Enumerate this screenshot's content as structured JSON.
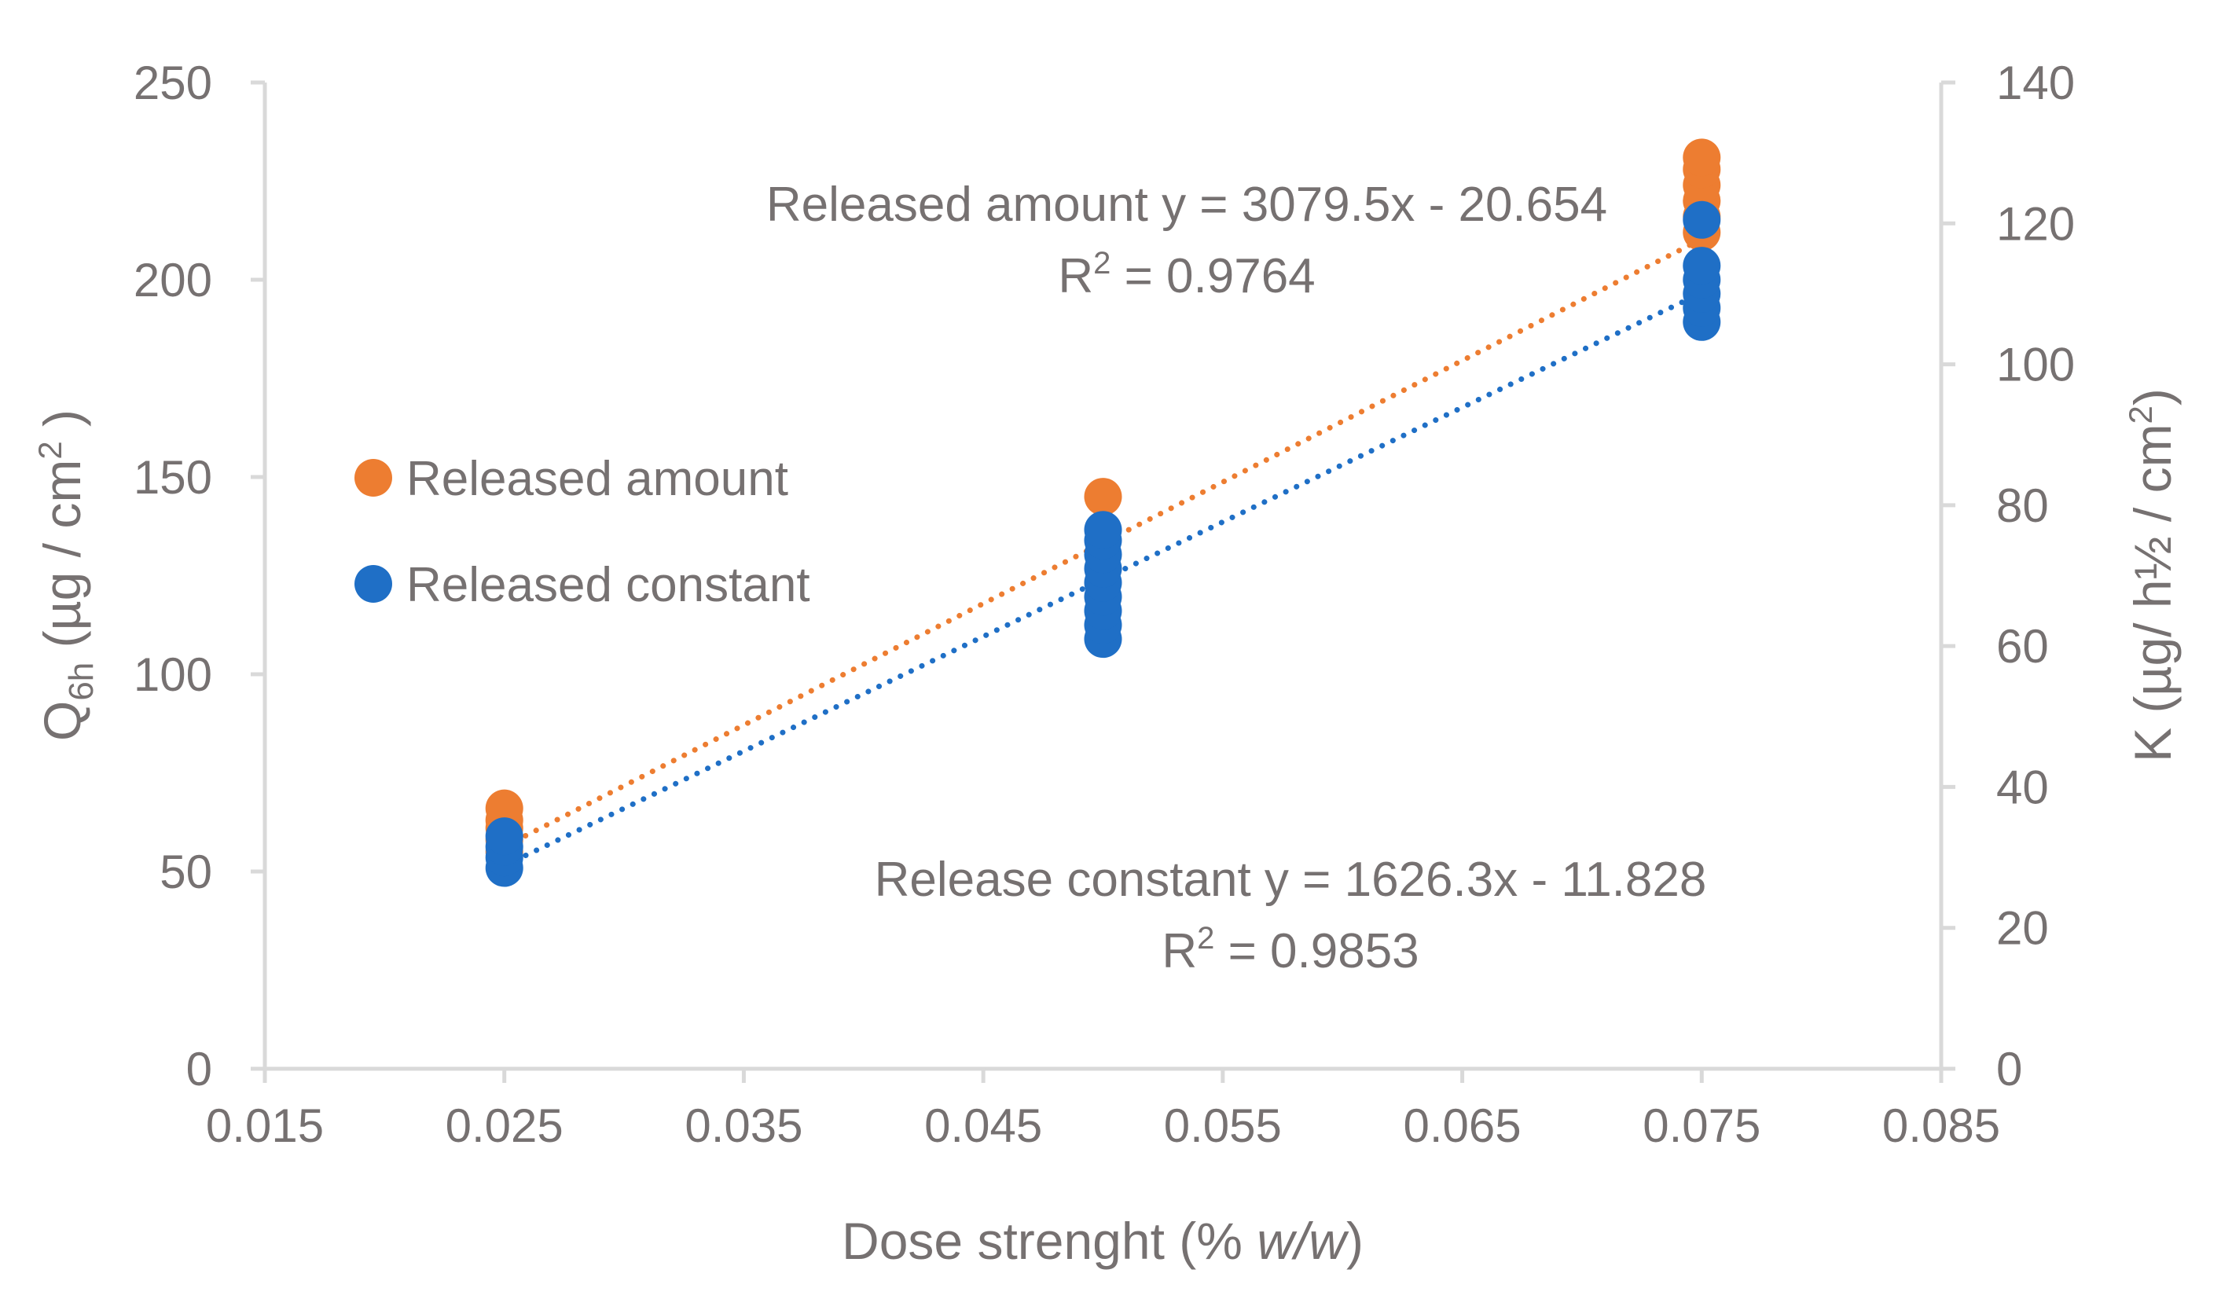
{
  "chart_data": {
    "type": "scatter",
    "x_axis": {
      "label": "Dose strenght (% w/w)",
      "label_pre": "Dose strenght (% ",
      "label_italic": "w/w",
      "label_post": ")",
      "min": 0.015,
      "max": 0.085,
      "ticks": [
        0.015,
        0.025,
        0.035,
        0.045,
        0.055,
        0.065,
        0.075,
        0.085
      ],
      "tick_labels": [
        "0.015",
        "0.025",
        "0.035",
        "0.045",
        "0.055",
        "0.065",
        "0.075",
        "0.085"
      ]
    },
    "y_axis_left": {
      "label": "Q6h (µg / cm2 )",
      "label_main": "Q",
      "label_sub": "6h",
      "label_rest": " (µg / cm",
      "label_sup": "2",
      "label_end": " )",
      "min": 0,
      "max": 250,
      "ticks": [
        0,
        50,
        100,
        150,
        200,
        250
      ],
      "tick_labels": [
        "0",
        "50",
        "100",
        "150",
        "200",
        "250"
      ]
    },
    "y_axis_right": {
      "label": "K (µg/ h½ / cm2)",
      "label_rest": "K (µg/ h½ / cm",
      "label_sup": "2",
      "label_end": ")",
      "min": 0,
      "max": 140,
      "ticks": [
        0,
        20,
        40,
        60,
        80,
        100,
        120,
        140
      ],
      "tick_labels": [
        "0",
        "20",
        "40",
        "60",
        "80",
        "100",
        "120",
        "140"
      ]
    },
    "series": [
      {
        "name": "Released amount",
        "color": "#ED7D31",
        "axis": "left",
        "points": [
          {
            "x": 0.025,
            "y": 55
          },
          {
            "x": 0.025,
            "y": 58
          },
          {
            "x": 0.025,
            "y": 61
          },
          {
            "x": 0.025,
            "y": 63
          },
          {
            "x": 0.025,
            "y": 66
          },
          {
            "x": 0.05,
            "y": 145
          },
          {
            "x": 0.075,
            "y": 212
          },
          {
            "x": 0.075,
            "y": 216
          },
          {
            "x": 0.075,
            "y": 220
          },
          {
            "x": 0.075,
            "y": 224
          },
          {
            "x": 0.075,
            "y": 228
          },
          {
            "x": 0.075,
            "y": 231
          }
        ],
        "trendline": {
          "slope": 3079.5,
          "intercept": -20.654,
          "x_from": 0.025,
          "x_to": 0.075
        }
      },
      {
        "name": "Released constant",
        "color": "#1F6FC6",
        "axis": "right",
        "points": [
          {
            "x": 0.025,
            "y": 28.5
          },
          {
            "x": 0.025,
            "y": 30
          },
          {
            "x": 0.025,
            "y": 31.5
          },
          {
            "x": 0.025,
            "y": 33
          },
          {
            "x": 0.05,
            "y": 61
          },
          {
            "x": 0.05,
            "y": 63
          },
          {
            "x": 0.05,
            "y": 65
          },
          {
            "x": 0.05,
            "y": 67
          },
          {
            "x": 0.05,
            "y": 69
          },
          {
            "x": 0.05,
            "y": 71
          },
          {
            "x": 0.05,
            "y": 73
          },
          {
            "x": 0.05,
            "y": 75
          },
          {
            "x": 0.05,
            "y": 76.5
          },
          {
            "x": 0.075,
            "y": 106
          },
          {
            "x": 0.075,
            "y": 108
          },
          {
            "x": 0.075,
            "y": 110
          },
          {
            "x": 0.075,
            "y": 112
          },
          {
            "x": 0.075,
            "y": 114
          },
          {
            "x": 0.075,
            "y": 120.5
          }
        ],
        "trendline": {
          "slope": 1626.3,
          "intercept": -11.828,
          "x_from": 0.025,
          "x_to": 0.075
        }
      }
    ],
    "legend": {
      "placement": "left-middle",
      "items": [
        "Released amount",
        "Released constant"
      ]
    },
    "annotations": {
      "amount_equation": "Released amount y = 3079.5x - 20.654",
      "amount_r2_pre": "R",
      "amount_r2_sup": "2",
      "amount_r2_post": " = 0.9764",
      "constant_equation": "Release constant y = 1626.3x - 11.828",
      "constant_r2_pre": "R",
      "constant_r2_sup": "2",
      "constant_r2_post": " = 0.9853"
    },
    "grid": false
  }
}
